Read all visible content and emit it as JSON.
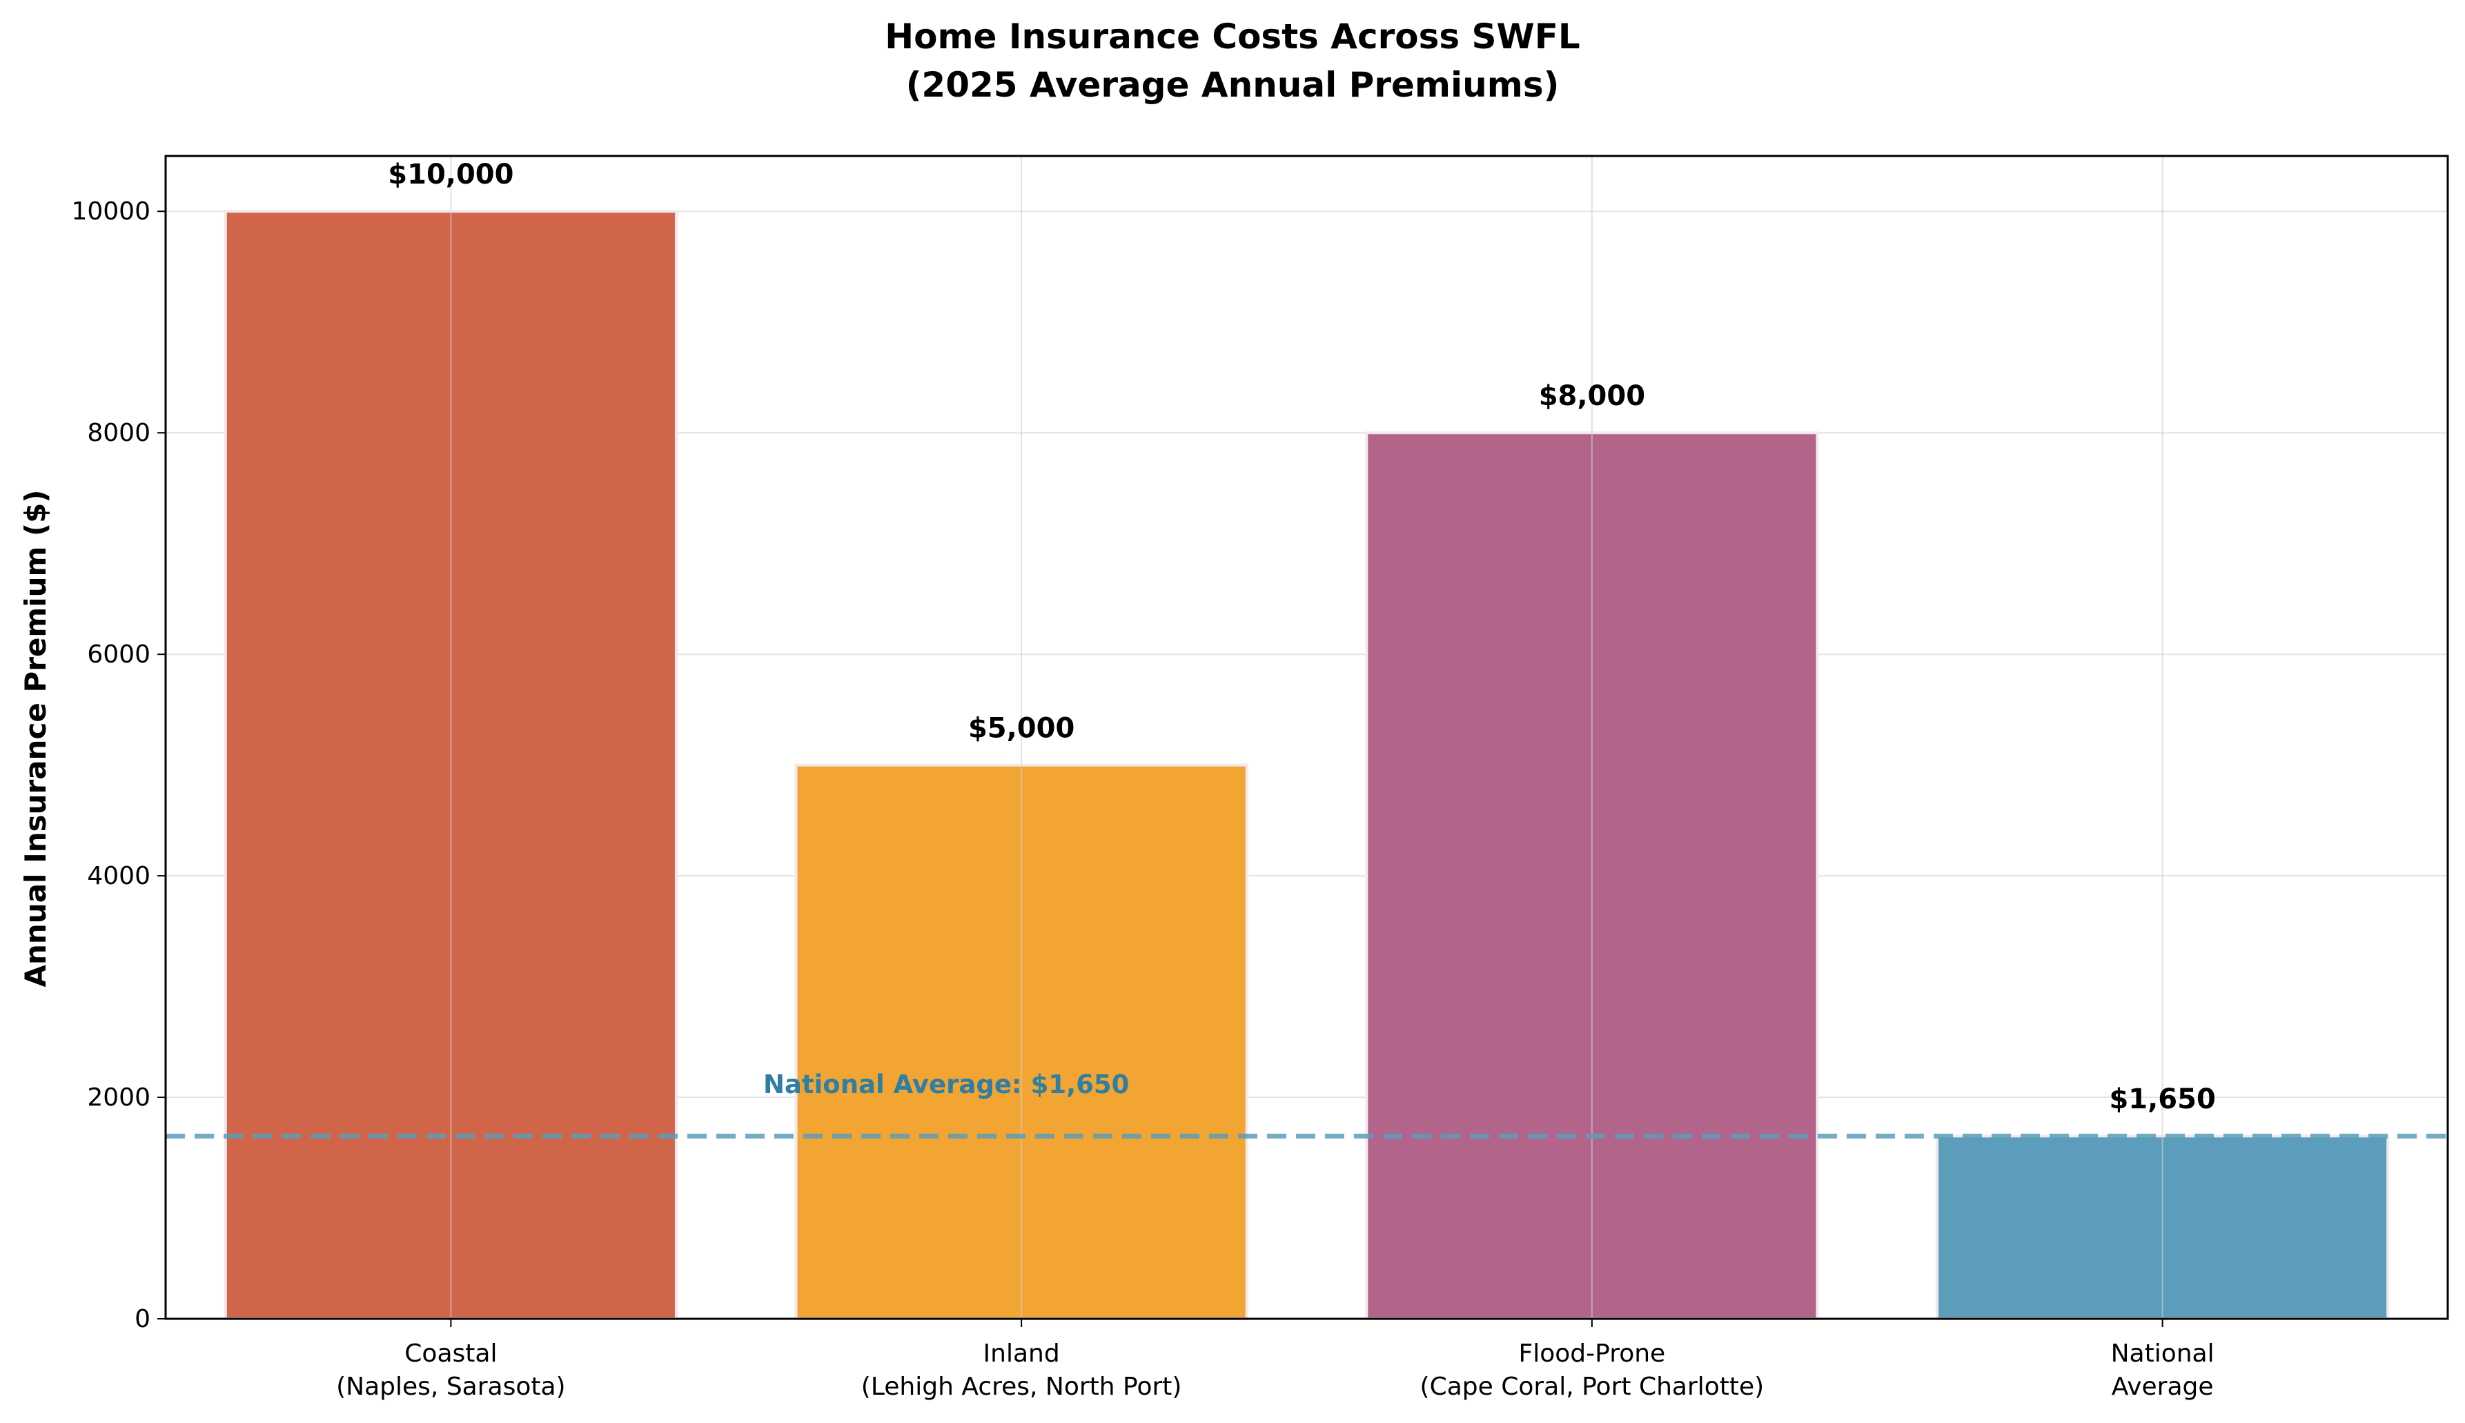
{
  "chart_data": {
    "type": "bar",
    "title_lines": [
      "Home Insurance Costs Across SWFL",
      "(2025 Average Annual Premiums)"
    ],
    "xlabel": "",
    "ylabel": "Annual Insurance Premium ($)",
    "categories": [
      [
        "Coastal",
        "(Naples, Sarasota)"
      ],
      [
        "Inland",
        "(Lehigh Acres, North Port)"
      ],
      [
        "Flood-Prone",
        "(Cape Coral, Port Charlotte)"
      ],
      [
        "National",
        "Average"
      ]
    ],
    "values": [
      10000,
      5000,
      8000,
      1650
    ],
    "value_labels": [
      "$10,000",
      "$5,000",
      "$8,000",
      "$1,650"
    ],
    "colors": [
      "#d1654a",
      "#f2a533",
      "#b3648b",
      "#5b9dba"
    ],
    "ylim": [
      0,
      10500
    ],
    "yticks": [
      0,
      2000,
      4000,
      6000,
      8000,
      10000
    ],
    "grid": true,
    "reference_line": {
      "value": 1650,
      "label": "National Average: $1,650",
      "color": "#5b9dba",
      "label_color": "#2f7ea3",
      "style": "dashed"
    }
  }
}
